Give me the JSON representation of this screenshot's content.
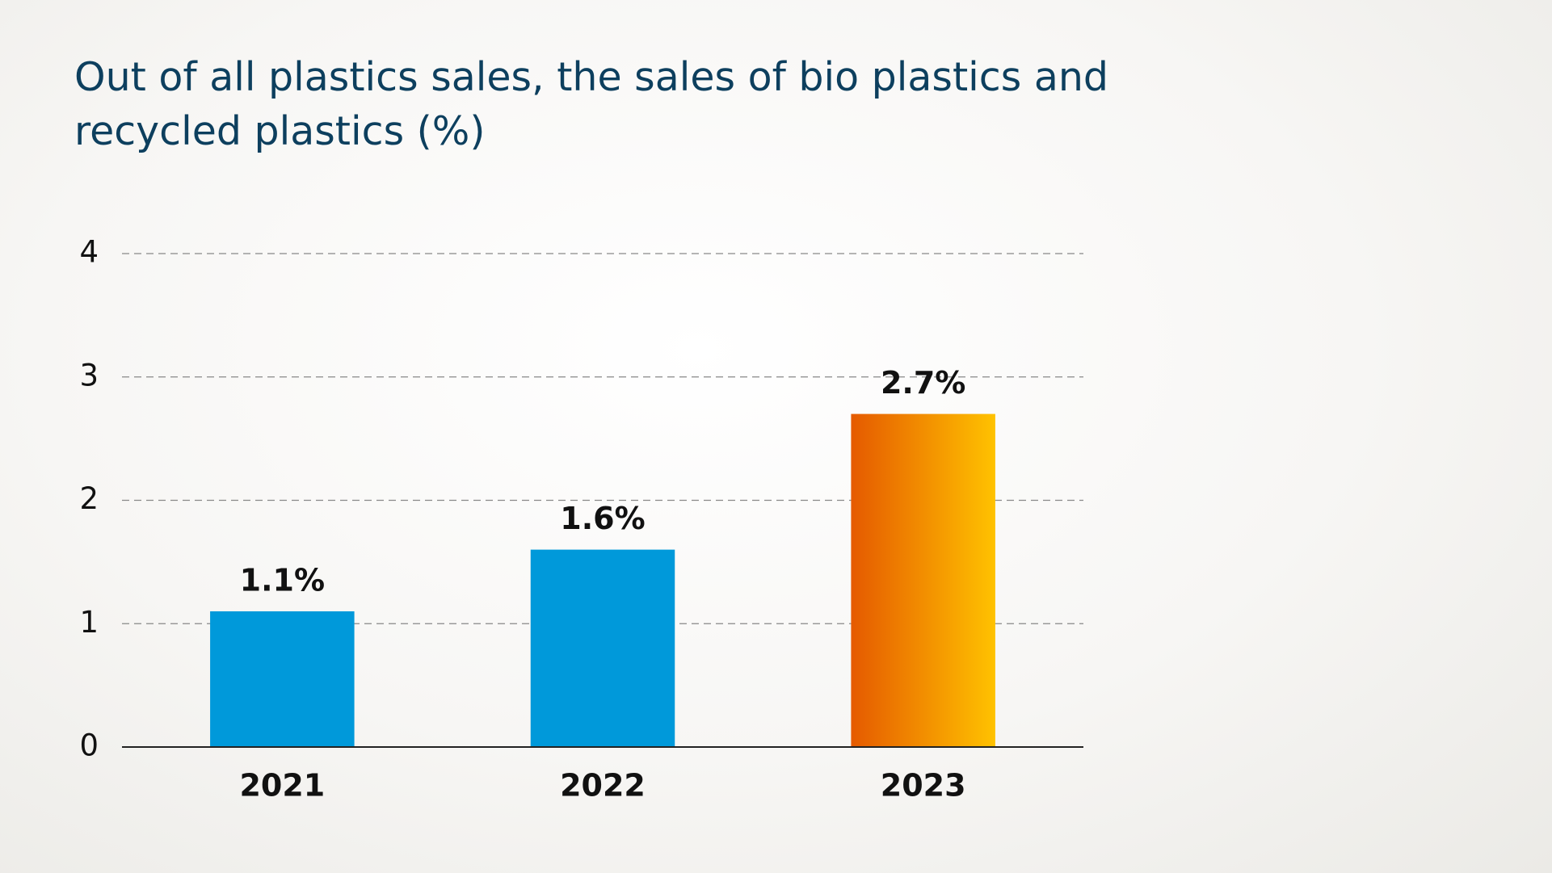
{
  "chart_data": {
    "type": "bar",
    "title": "Out of all plastics sales, the sales of bio plastics and recycled plastics (%)",
    "categories": [
      "2021",
      "2022",
      "2023"
    ],
    "values": [
      1.1,
      1.6,
      2.7
    ],
    "value_labels": [
      "1.1%",
      "1.6%",
      "2.7%"
    ],
    "colors": [
      "#0099da",
      "#0099da",
      [
        "#e55a00",
        "#ffc200"
      ]
    ],
    "ylim": [
      0,
      4
    ],
    "yticks": [
      0,
      1,
      2,
      3,
      4
    ],
    "grid": true
  }
}
